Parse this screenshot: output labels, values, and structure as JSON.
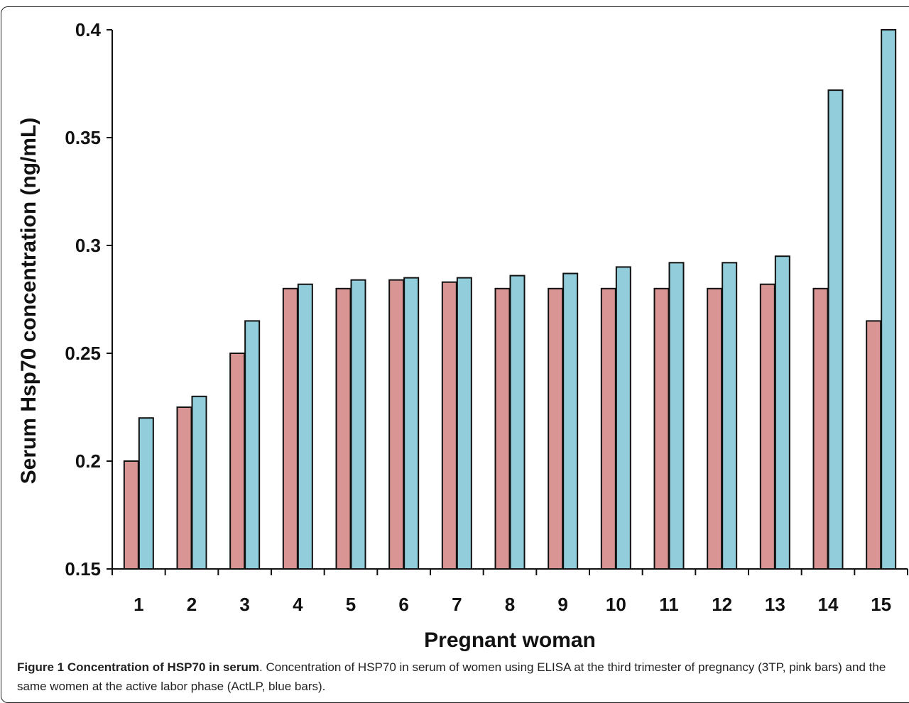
{
  "chart_data": {
    "type": "bar",
    "xlabel": "Pregnant woman",
    "ylabel": "Serum Hsp70 concentration (ng/mL)",
    "categories": [
      "1",
      "2",
      "3",
      "4",
      "5",
      "6",
      "7",
      "8",
      "9",
      "10",
      "11",
      "12",
      "13",
      "14",
      "15"
    ],
    "series": [
      {
        "color": "#d99594",
        "values": [
          0.2,
          0.225,
          0.25,
          0.28,
          0.28,
          0.284,
          0.283,
          0.28,
          0.28,
          0.28,
          0.28,
          0.28,
          0.282,
          0.28,
          0.265
        ]
      },
      {
        "color": "#92cddc",
        "values": [
          0.22,
          0.23,
          0.265,
          0.282,
          0.284,
          0.285,
          0.285,
          0.286,
          0.287,
          0.29,
          0.292,
          0.292,
          0.295,
          0.372,
          0.4
        ]
      }
    ],
    "ylim": [
      0.15,
      0.4
    ],
    "yticks": [
      "0.15",
      "0.2",
      "0.25",
      "0.3",
      "0.35",
      "0.4"
    ],
    "grid": false,
    "legend": "none"
  },
  "caption": {
    "label": "Figure 1 Concentration of HSP70 in serum",
    "text": ". Concentration of HSP70 in serum of women using ELISA at the third trimester of pregnancy (3TP, pink bars) and the same women at the active labor phase (ActLP, blue bars)."
  }
}
